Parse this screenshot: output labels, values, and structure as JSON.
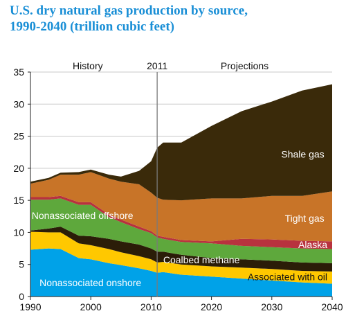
{
  "title_line1": "U.S. dry natural gas production by source,",
  "title_line2": "1990-2040 (trillion cubic feet)",
  "chart_data": {
    "type": "area",
    "stacked": true,
    "x": [
      1990,
      1993,
      1995,
      1998,
      2000,
      2003,
      2005,
      2008,
      2010,
      2011,
      2012,
      2015,
      2020,
      2025,
      2030,
      2035,
      2040
    ],
    "xticks": [
      1990,
      2000,
      2010,
      2020,
      2030,
      2040
    ],
    "yticks": [
      0,
      5,
      10,
      15,
      20,
      25,
      30,
      35
    ],
    "xlim": [
      1990,
      2040
    ],
    "ylim": [
      0,
      35
    ],
    "grid": "horizontal",
    "annotations": {
      "history": "History",
      "divider": "2011",
      "projections": "Projections"
    },
    "series": [
      {
        "name": "Nonassociated onshore",
        "color": "#00a2e8",
        "label_color": "#ffffff",
        "values": [
          7.3,
          7.5,
          7.4,
          6.0,
          5.8,
          5.2,
          4.9,
          4.4,
          4.0,
          3.7,
          3.8,
          3.4,
          3.1,
          2.8,
          2.5,
          2.2,
          2.0
        ]
      },
      {
        "name": "Associated with oil",
        "color": "#ffc800",
        "label_color": "#111111",
        "values": [
          2.8,
          2.5,
          2.6,
          2.3,
          2.2,
          2.2,
          2.0,
          1.9,
          1.8,
          1.6,
          1.6,
          1.6,
          1.6,
          1.7,
          1.8,
          1.8,
          1.9
        ]
      },
      {
        "name": "Coalbed methane",
        "color": "#2b1d08",
        "label_color": "#ffffff",
        "values": [
          0.2,
          0.6,
          0.9,
          1.2,
          1.4,
          1.6,
          1.7,
          1.8,
          1.7,
          1.7,
          1.6,
          1.5,
          1.3,
          1.3,
          1.3,
          1.3,
          1.3
        ]
      },
      {
        "name": "Nonassociated offshore",
        "color": "#5ea83c",
        "label_color": "#ffffff",
        "values": [
          4.8,
          4.5,
          4.4,
          4.8,
          4.9,
          3.4,
          3.0,
          2.4,
          2.4,
          2.2,
          2.0,
          2.0,
          2.3,
          2.1,
          2.1,
          2.2,
          2.2
        ]
      },
      {
        "name": "Alaska",
        "color": "#b8323e",
        "label_color": "#ffffff",
        "values": [
          0.4,
          0.4,
          0.4,
          0.4,
          0.4,
          0.4,
          0.4,
          0.4,
          0.3,
          0.3,
          0.3,
          0.3,
          0.3,
          1.1,
          1.2,
          1.2,
          1.2
        ]
      },
      {
        "name": "Tight gas",
        "color": "#c87428",
        "label_color": "#ffffff",
        "values": [
          2.1,
          2.7,
          3.3,
          4.3,
          4.7,
          5.6,
          5.9,
          6.6,
          6.0,
          5.9,
          5.8,
          6.2,
          6.7,
          6.3,
          6.8,
          7.0,
          7.8
        ]
      },
      {
        "name": "Shale gas",
        "color": "#3a2a0a",
        "label_color": "#ffffff",
        "values": [
          0.3,
          0.3,
          0.3,
          0.4,
          0.4,
          0.6,
          0.8,
          2.1,
          4.9,
          7.8,
          8.9,
          9.0,
          11.3,
          13.6,
          14.7,
          16.4,
          16.7
        ]
      }
    ]
  }
}
